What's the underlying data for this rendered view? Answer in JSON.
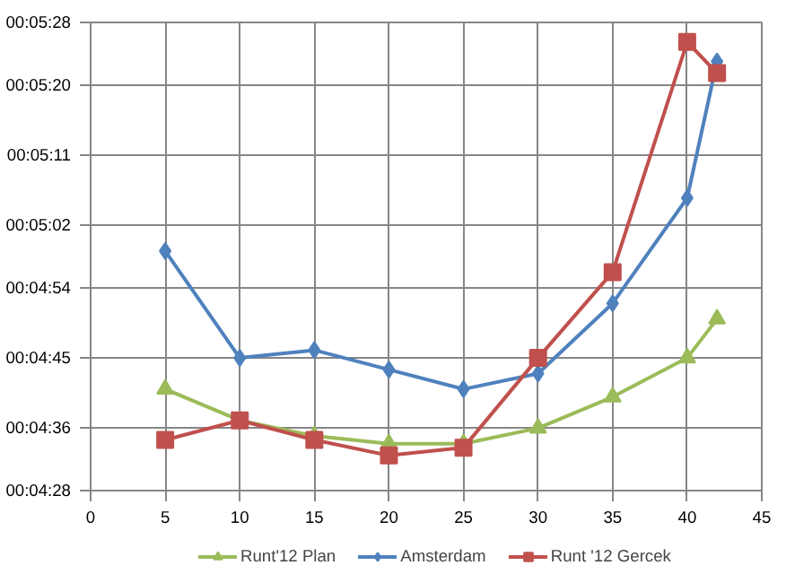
{
  "chart_data": {
    "type": "line",
    "x": [
      5,
      10,
      15,
      20,
      25,
      30,
      35,
      40,
      42
    ],
    "series": [
      {
        "name": "Runt'12 Plan",
        "color": "#9bbb59",
        "marker": "triangle",
        "values": [
          281,
          277,
          275,
          274,
          274,
          276,
          280,
          285,
          290
        ]
      },
      {
        "name": "Amsterdam",
        "color": "#4f81bd",
        "marker": "diamond",
        "values": [
          298.7,
          285,
          286,
          283.5,
          281,
          283,
          292,
          305.5,
          323
        ]
      },
      {
        "name": "Runt '12 Gercek",
        "color": "#c0504d",
        "marker": "square",
        "values": [
          274.5,
          277,
          274.5,
          272.5,
          273.5,
          285,
          296,
          325.5,
          321.5
        ]
      }
    ],
    "xlim": [
      0,
      45
    ],
    "xticks": [
      0,
      5,
      10,
      15,
      20,
      25,
      30,
      35,
      40,
      45
    ],
    "ylim": [
      268,
      328
    ],
    "yticks": [
      {
        "value": 268,
        "label": "00:04:28"
      },
      {
        "value": 276,
        "label": "00:04:36"
      },
      {
        "value": 285,
        "label": "00:04:45"
      },
      {
        "value": 294,
        "label": "00:04:54"
      },
      {
        "value": 302,
        "label": "00:05:02"
      },
      {
        "value": 311,
        "label": "00:05:11"
      },
      {
        "value": 320,
        "label": "00:05:20"
      },
      {
        "value": 328,
        "label": "00:05:28"
      }
    ],
    "grid": true,
    "legend": "bottom",
    "line_style": "solid"
  }
}
